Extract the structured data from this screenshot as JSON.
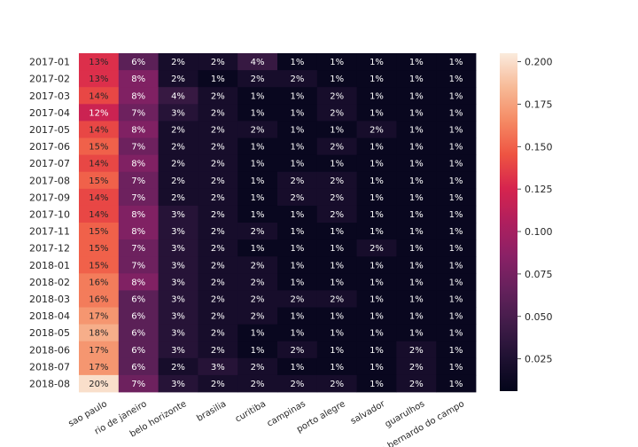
{
  "chart_data": {
    "type": "heatmap",
    "title": "",
    "xlabel": "",
    "ylabel": "",
    "rows": [
      "2017-01",
      "2017-02",
      "2017-03",
      "2017-04",
      "2017-05",
      "2017-06",
      "2017-07",
      "2017-08",
      "2017-09",
      "2017-10",
      "2017-11",
      "2017-12",
      "2018-01",
      "2018-02",
      "2018-03",
      "2018-04",
      "2018-05",
      "2018-06",
      "2018-07",
      "2018-08"
    ],
    "columns": [
      "sao paulo",
      "rio de janeiro",
      "belo horizonte",
      "brasilia",
      "curitiba",
      "campinas",
      "porto alegre",
      "salvador",
      "guarulhos",
      "sao bernardo do campo"
    ],
    "values": [
      [
        0.13,
        0.06,
        0.02,
        0.02,
        0.04,
        0.01,
        0.01,
        0.01,
        0.01,
        0.01
      ],
      [
        0.13,
        0.08,
        0.02,
        0.01,
        0.02,
        0.02,
        0.01,
        0.01,
        0.01,
        0.01
      ],
      [
        0.14,
        0.08,
        0.04,
        0.02,
        0.01,
        0.01,
        0.02,
        0.01,
        0.01,
        0.01
      ],
      [
        0.12,
        0.07,
        0.03,
        0.02,
        0.01,
        0.01,
        0.02,
        0.01,
        0.01,
        0.01
      ],
      [
        0.14,
        0.08,
        0.02,
        0.02,
        0.02,
        0.01,
        0.01,
        0.02,
        0.01,
        0.01
      ],
      [
        0.15,
        0.07,
        0.02,
        0.02,
        0.01,
        0.01,
        0.02,
        0.01,
        0.01,
        0.01
      ],
      [
        0.14,
        0.08,
        0.02,
        0.02,
        0.01,
        0.01,
        0.01,
        0.01,
        0.01,
        0.01
      ],
      [
        0.15,
        0.07,
        0.02,
        0.02,
        0.01,
        0.02,
        0.02,
        0.01,
        0.01,
        0.01
      ],
      [
        0.14,
        0.07,
        0.02,
        0.02,
        0.01,
        0.02,
        0.02,
        0.01,
        0.01,
        0.01
      ],
      [
        0.14,
        0.08,
        0.03,
        0.02,
        0.01,
        0.01,
        0.02,
        0.01,
        0.01,
        0.01
      ],
      [
        0.15,
        0.08,
        0.03,
        0.02,
        0.02,
        0.01,
        0.01,
        0.01,
        0.01,
        0.01
      ],
      [
        0.15,
        0.07,
        0.03,
        0.02,
        0.01,
        0.01,
        0.01,
        0.02,
        0.01,
        0.01
      ],
      [
        0.15,
        0.07,
        0.03,
        0.02,
        0.02,
        0.01,
        0.01,
        0.01,
        0.01,
        0.01
      ],
      [
        0.16,
        0.08,
        0.03,
        0.02,
        0.02,
        0.01,
        0.01,
        0.01,
        0.01,
        0.01
      ],
      [
        0.16,
        0.06,
        0.03,
        0.02,
        0.02,
        0.02,
        0.02,
        0.01,
        0.01,
        0.01
      ],
      [
        0.17,
        0.06,
        0.03,
        0.02,
        0.02,
        0.01,
        0.01,
        0.01,
        0.01,
        0.01
      ],
      [
        0.18,
        0.06,
        0.03,
        0.02,
        0.01,
        0.01,
        0.01,
        0.01,
        0.01,
        0.01
      ],
      [
        0.17,
        0.06,
        0.03,
        0.02,
        0.01,
        0.02,
        0.01,
        0.01,
        0.02,
        0.01
      ],
      [
        0.17,
        0.06,
        0.02,
        0.03,
        0.02,
        0.01,
        0.01,
        0.01,
        0.02,
        0.01
      ],
      [
        0.2,
        0.07,
        0.03,
        0.02,
        0.02,
        0.02,
        0.02,
        0.01,
        0.02,
        0.01
      ]
    ],
    "cell_labels": [
      [
        "13%",
        "6%",
        "2%",
        "2%",
        "4%",
        "1%",
        "1%",
        "1%",
        "1%",
        "1%"
      ],
      [
        "13%",
        "8%",
        "2%",
        "1%",
        "2%",
        "2%",
        "1%",
        "1%",
        "1%",
        "1%"
      ],
      [
        "14%",
        "8%",
        "4%",
        "2%",
        "1%",
        "1%",
        "2%",
        "1%",
        "1%",
        "1%"
      ],
      [
        "12%",
        "7%",
        "3%",
        "2%",
        "1%",
        "1%",
        "2%",
        "1%",
        "1%",
        "1%"
      ],
      [
        "14%",
        "8%",
        "2%",
        "2%",
        "2%",
        "1%",
        "1%",
        "2%",
        "1%",
        "1%"
      ],
      [
        "15%",
        "7%",
        "2%",
        "2%",
        "1%",
        "1%",
        "2%",
        "1%",
        "1%",
        "1%"
      ],
      [
        "14%",
        "8%",
        "2%",
        "2%",
        "1%",
        "1%",
        "1%",
        "1%",
        "1%",
        "1%"
      ],
      [
        "15%",
        "7%",
        "2%",
        "2%",
        "1%",
        "2%",
        "2%",
        "1%",
        "1%",
        "1%"
      ],
      [
        "14%",
        "7%",
        "2%",
        "2%",
        "1%",
        "2%",
        "2%",
        "1%",
        "1%",
        "1%"
      ],
      [
        "14%",
        "8%",
        "3%",
        "2%",
        "1%",
        "1%",
        "2%",
        "1%",
        "1%",
        "1%"
      ],
      [
        "15%",
        "8%",
        "3%",
        "2%",
        "2%",
        "1%",
        "1%",
        "1%",
        "1%",
        "1%"
      ],
      [
        "15%",
        "7%",
        "3%",
        "2%",
        "1%",
        "1%",
        "1%",
        "2%",
        "1%",
        "1%"
      ],
      [
        "15%",
        "7%",
        "3%",
        "2%",
        "2%",
        "1%",
        "1%",
        "1%",
        "1%",
        "1%"
      ],
      [
        "16%",
        "8%",
        "3%",
        "2%",
        "2%",
        "1%",
        "1%",
        "1%",
        "1%",
        "1%"
      ],
      [
        "16%",
        "6%",
        "3%",
        "2%",
        "2%",
        "2%",
        "2%",
        "1%",
        "1%",
        "1%"
      ],
      [
        "17%",
        "6%",
        "3%",
        "2%",
        "2%",
        "1%",
        "1%",
        "1%",
        "1%",
        "1%"
      ],
      [
        "18%",
        "6%",
        "3%",
        "2%",
        "1%",
        "1%",
        "1%",
        "1%",
        "1%",
        "1%"
      ],
      [
        "17%",
        "6%",
        "3%",
        "2%",
        "1%",
        "2%",
        "1%",
        "1%",
        "2%",
        "1%"
      ],
      [
        "17%",
        "6%",
        "2%",
        "3%",
        "2%",
        "1%",
        "1%",
        "1%",
        "2%",
        "1%"
      ],
      [
        "20%",
        "7%",
        "3%",
        "2%",
        "2%",
        "2%",
        "2%",
        "1%",
        "2%",
        "1%"
      ]
    ],
    "colorbar": {
      "min": 0.006,
      "max": 0.205,
      "ticks": [
        0.025,
        0.05,
        0.075,
        0.1,
        0.125,
        0.15,
        0.175,
        0.2
      ],
      "tick_labels": [
        "0.025",
        "0.050",
        "0.075",
        "0.100",
        "0.125",
        "0.150",
        "0.175",
        "0.200"
      ],
      "colormap": "rocket"
    },
    "grid": false,
    "legend": "colorbar-right"
  }
}
